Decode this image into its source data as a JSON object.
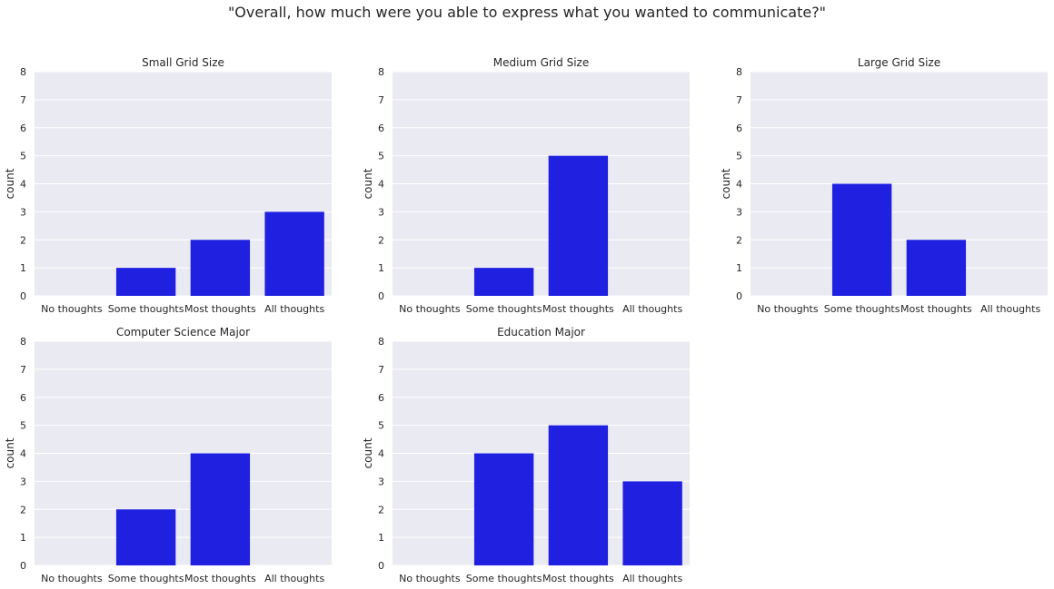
{
  "suptitle": "\"Overall, how much were you able to express what you wanted to communicate?\"",
  "style": {
    "background": "#EAEAF2",
    "grid": "#FFFFFF",
    "bar": "#2020E0"
  },
  "chart_data": [
    {
      "type": "bar",
      "title": "Small Grid Size",
      "categories": [
        "No thoughts",
        "Some thoughts",
        "Most thoughts",
        "All thoughts"
      ],
      "values": [
        0,
        1,
        2,
        3
      ],
      "ylabel": "count",
      "ylim": [
        0,
        8
      ],
      "yticks": [
        0,
        1,
        2,
        3,
        4,
        5,
        6,
        7,
        8
      ],
      "grid": true
    },
    {
      "type": "bar",
      "title": "Medium Grid Size",
      "categories": [
        "No thoughts",
        "Some thoughts",
        "Most thoughts",
        "All thoughts"
      ],
      "values": [
        0,
        1,
        5,
        0
      ],
      "ylabel": "count",
      "ylim": [
        0,
        8
      ],
      "yticks": [
        0,
        1,
        2,
        3,
        4,
        5,
        6,
        7,
        8
      ],
      "grid": true
    },
    {
      "type": "bar",
      "title": "Large Grid Size",
      "categories": [
        "No thoughts",
        "Some thoughts",
        "Most thoughts",
        "All thoughts"
      ],
      "values": [
        0,
        4,
        2,
        0
      ],
      "ylabel": "count",
      "ylim": [
        0,
        8
      ],
      "yticks": [
        0,
        1,
        2,
        3,
        4,
        5,
        6,
        7,
        8
      ],
      "grid": true
    },
    {
      "type": "bar",
      "title": "Computer Science Major",
      "categories": [
        "No thoughts",
        "Some thoughts",
        "Most thoughts",
        "All thoughts"
      ],
      "values": [
        0,
        2,
        4,
        0
      ],
      "ylabel": "count",
      "ylim": [
        0,
        8
      ],
      "yticks": [
        0,
        1,
        2,
        3,
        4,
        5,
        6,
        7,
        8
      ],
      "grid": true
    },
    {
      "type": "bar",
      "title": "Education Major",
      "categories": [
        "No thoughts",
        "Some thoughts",
        "Most thoughts",
        "All thoughts"
      ],
      "values": [
        0,
        4,
        5,
        3
      ],
      "ylabel": "count",
      "ylim": [
        0,
        8
      ],
      "yticks": [
        0,
        1,
        2,
        3,
        4,
        5,
        6,
        7,
        8
      ],
      "grid": true
    }
  ]
}
